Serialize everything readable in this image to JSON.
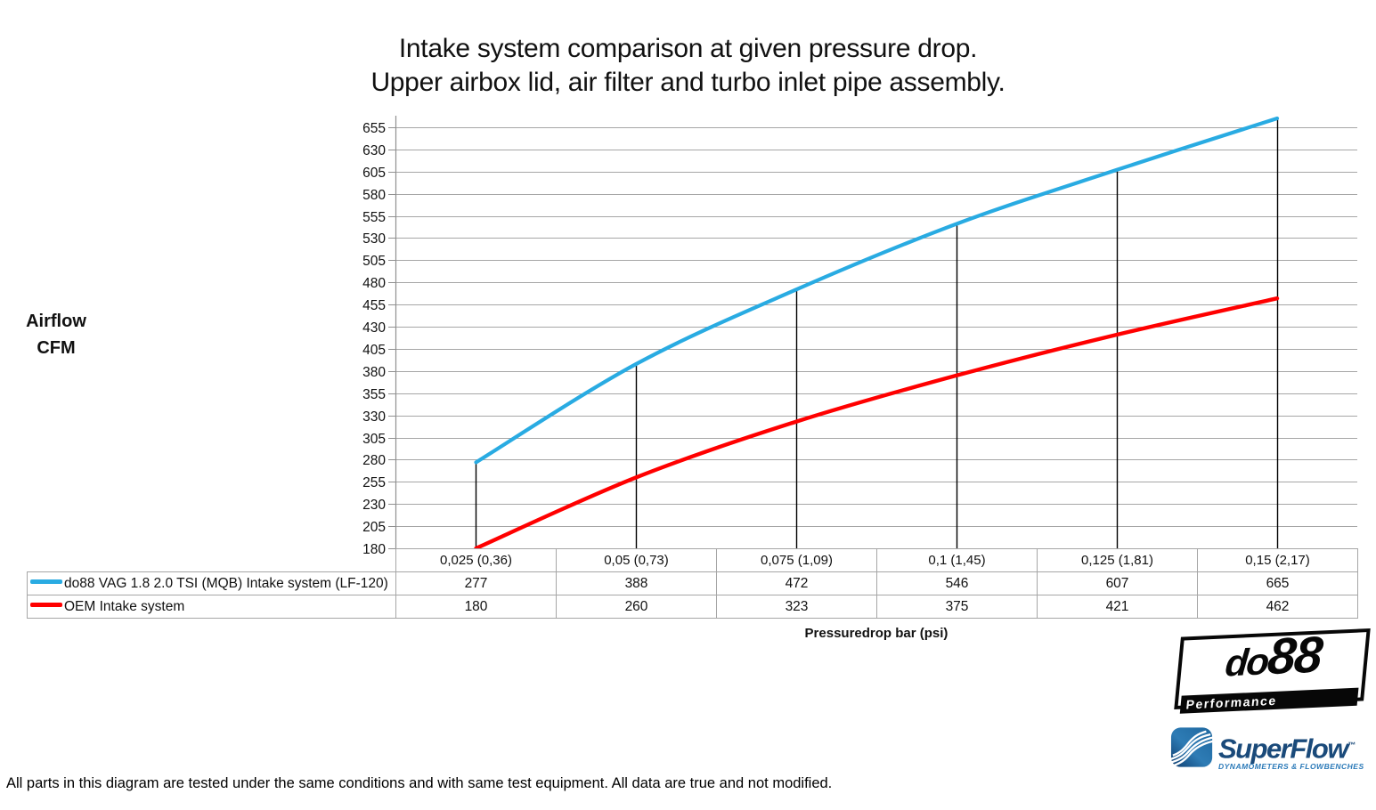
{
  "title": {
    "line1": "Intake system comparison at given pressure drop.",
    "line2": "Upper airbox lid, air filter and turbo inlet pipe assembly."
  },
  "y_axis_label": {
    "line1": "Airflow",
    "line2": "CFM"
  },
  "chart_data": {
    "type": "line",
    "title": "Intake system comparison at given pressure drop. Upper airbox lid, air filter and turbo inlet pipe assembly.",
    "xlabel": "Pressuredrop bar (psi)",
    "ylabel": "Airflow CFM",
    "categories": [
      "0,025 (0,36)",
      "0,05 (0,73)",
      "0,075 (1,09)",
      "0,1 (1,45)",
      "0,125 (1,81)",
      "0,15 (2,17)"
    ],
    "series": [
      {
        "name": "do88 VAG 1.8 2.0 TSI (MQB) Intake system (LF-120)",
        "color": "#29ABE2",
        "values": [
          277,
          388,
          472,
          546,
          607,
          665
        ]
      },
      {
        "name": "OEM Intake system",
        "color": "#FF0000",
        "values": [
          180,
          260,
          323,
          375,
          421,
          462
        ]
      }
    ],
    "yticks": [
      655,
      630,
      605,
      580,
      555,
      530,
      505,
      480,
      455,
      430,
      405,
      380,
      355,
      330,
      305,
      280,
      255,
      230,
      205,
      180
    ],
    "ylim": [
      180,
      668
    ],
    "grid": "horizontal gridlines every 25 CFM",
    "legend_position": "table rows at left of data table below chart",
    "annotations": "vertical black drop lines from each do88 data point down to the category axis",
    "line_style": "smoothed"
  },
  "footnote": "All parts in this diagram are tested under the same conditions and with same test equipment. All data are true and not modified.",
  "logos": {
    "do88": {
      "text": "do88",
      "sub": "Performance"
    },
    "superflow": {
      "name": "SuperFlow",
      "mark": "™",
      "sub": "DYNAMOMETERS & FLOWBENCHES"
    }
  },
  "colors": {
    "series_do88": "#29ABE2",
    "series_oem": "#FF0000",
    "gridline": "#A6A6A6",
    "axis": "#909090",
    "dropline": "#000000",
    "table_border": "#A6A6A6",
    "text": "#111111",
    "superflow_navy": "#1A4A7A",
    "superflow_blue": "#2A79B8"
  }
}
